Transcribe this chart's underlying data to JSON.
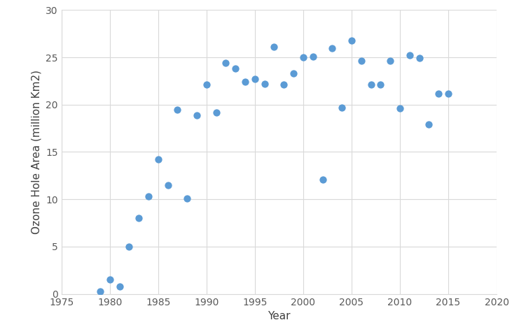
{
  "years": [
    1979,
    1980,
    1981,
    1982,
    1983,
    1984,
    1985,
    1986,
    1987,
    1988,
    1989,
    1990,
    1991,
    1992,
    1993,
    1994,
    1995,
    1996,
    1997,
    1998,
    1999,
    2000,
    2001,
    2002,
    2003,
    2004,
    2005,
    2006,
    2007,
    2008,
    2009,
    2010,
    2011,
    2012,
    2013,
    2014,
    2015
  ],
  "areas": [
    0.3,
    1.5,
    0.8,
    5.0,
    8.0,
    10.3,
    14.2,
    11.5,
    19.5,
    10.1,
    18.9,
    22.1,
    19.2,
    24.4,
    23.8,
    22.4,
    22.7,
    22.2,
    26.1,
    22.1,
    23.3,
    25.0,
    25.1,
    12.1,
    26.0,
    19.7,
    26.8,
    24.6,
    22.1,
    22.1,
    24.6,
    19.6,
    25.2,
    24.9,
    17.9,
    21.2,
    21.2
  ],
  "marker_color": "#5B9BD5",
  "marker_size": 55,
  "xlabel": "Year",
  "ylabel": "Ozone Hole Area (million Km2)",
  "xlim": [
    1975,
    2020
  ],
  "ylim": [
    0,
    30
  ],
  "xticks": [
    1975,
    1980,
    1985,
    1990,
    1995,
    2000,
    2005,
    2010,
    2015,
    2020
  ],
  "yticks": [
    0,
    5,
    10,
    15,
    20,
    25,
    30
  ],
  "grid_color": "#D9D9D9",
  "spine_color": "#D9D9D9",
  "tick_label_color": "#595959",
  "axis_label_color": "#404040",
  "background_color": "#FFFFFF",
  "figure_facecolor": "#FFFFFF",
  "xlabel_fontsize": 11,
  "ylabel_fontsize": 11,
  "tick_fontsize": 10
}
